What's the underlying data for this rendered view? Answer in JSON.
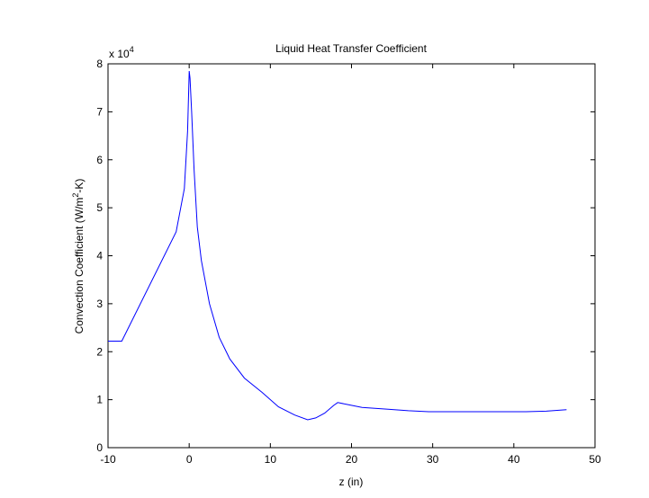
{
  "chart_data": {
    "type": "line",
    "title": "Liquid Heat Transfer Coefficient",
    "xlabel": "z (in)",
    "ylabel": {
      "base": "Convection Coefficient (W/m",
      "sup": "2",
      "tail": "-K)"
    },
    "y_multiplier": {
      "base": "x 10",
      "exponent": "4"
    },
    "xlim": [
      -10,
      50
    ],
    "ylim": [
      0,
      8
    ],
    "xticks": [
      "-10",
      "0",
      "10",
      "20",
      "30",
      "40",
      "50"
    ],
    "yticks": [
      "0",
      "1",
      "2",
      "3",
      "4",
      "5",
      "6",
      "7",
      "8"
    ],
    "grid": false,
    "line_color": "#0000ff",
    "series": [
      {
        "x": [
          -10.0,
          -8.3,
          -1.6,
          -0.6,
          -0.2,
          0.0,
          0.1,
          0.3,
          0.6,
          1.0,
          1.5,
          2.5,
          3.7,
          5.0,
          6.8,
          9.0,
          11.0,
          13.0,
          14.6,
          15.6,
          16.7,
          17.8,
          18.3,
          19.5,
          21.3,
          24.5,
          27.0,
          29.5,
          33.0,
          37.0,
          41.5,
          44.0,
          46.5
        ],
        "y": [
          2.22,
          2.22,
          4.5,
          5.4,
          6.6,
          7.85,
          7.7,
          7.0,
          5.8,
          4.6,
          3.9,
          3.0,
          2.3,
          1.85,
          1.45,
          1.15,
          0.85,
          0.68,
          0.58,
          0.62,
          0.72,
          0.88,
          0.94,
          0.9,
          0.84,
          0.8,
          0.77,
          0.75,
          0.75,
          0.75,
          0.75,
          0.76,
          0.79
        ]
      }
    ]
  }
}
